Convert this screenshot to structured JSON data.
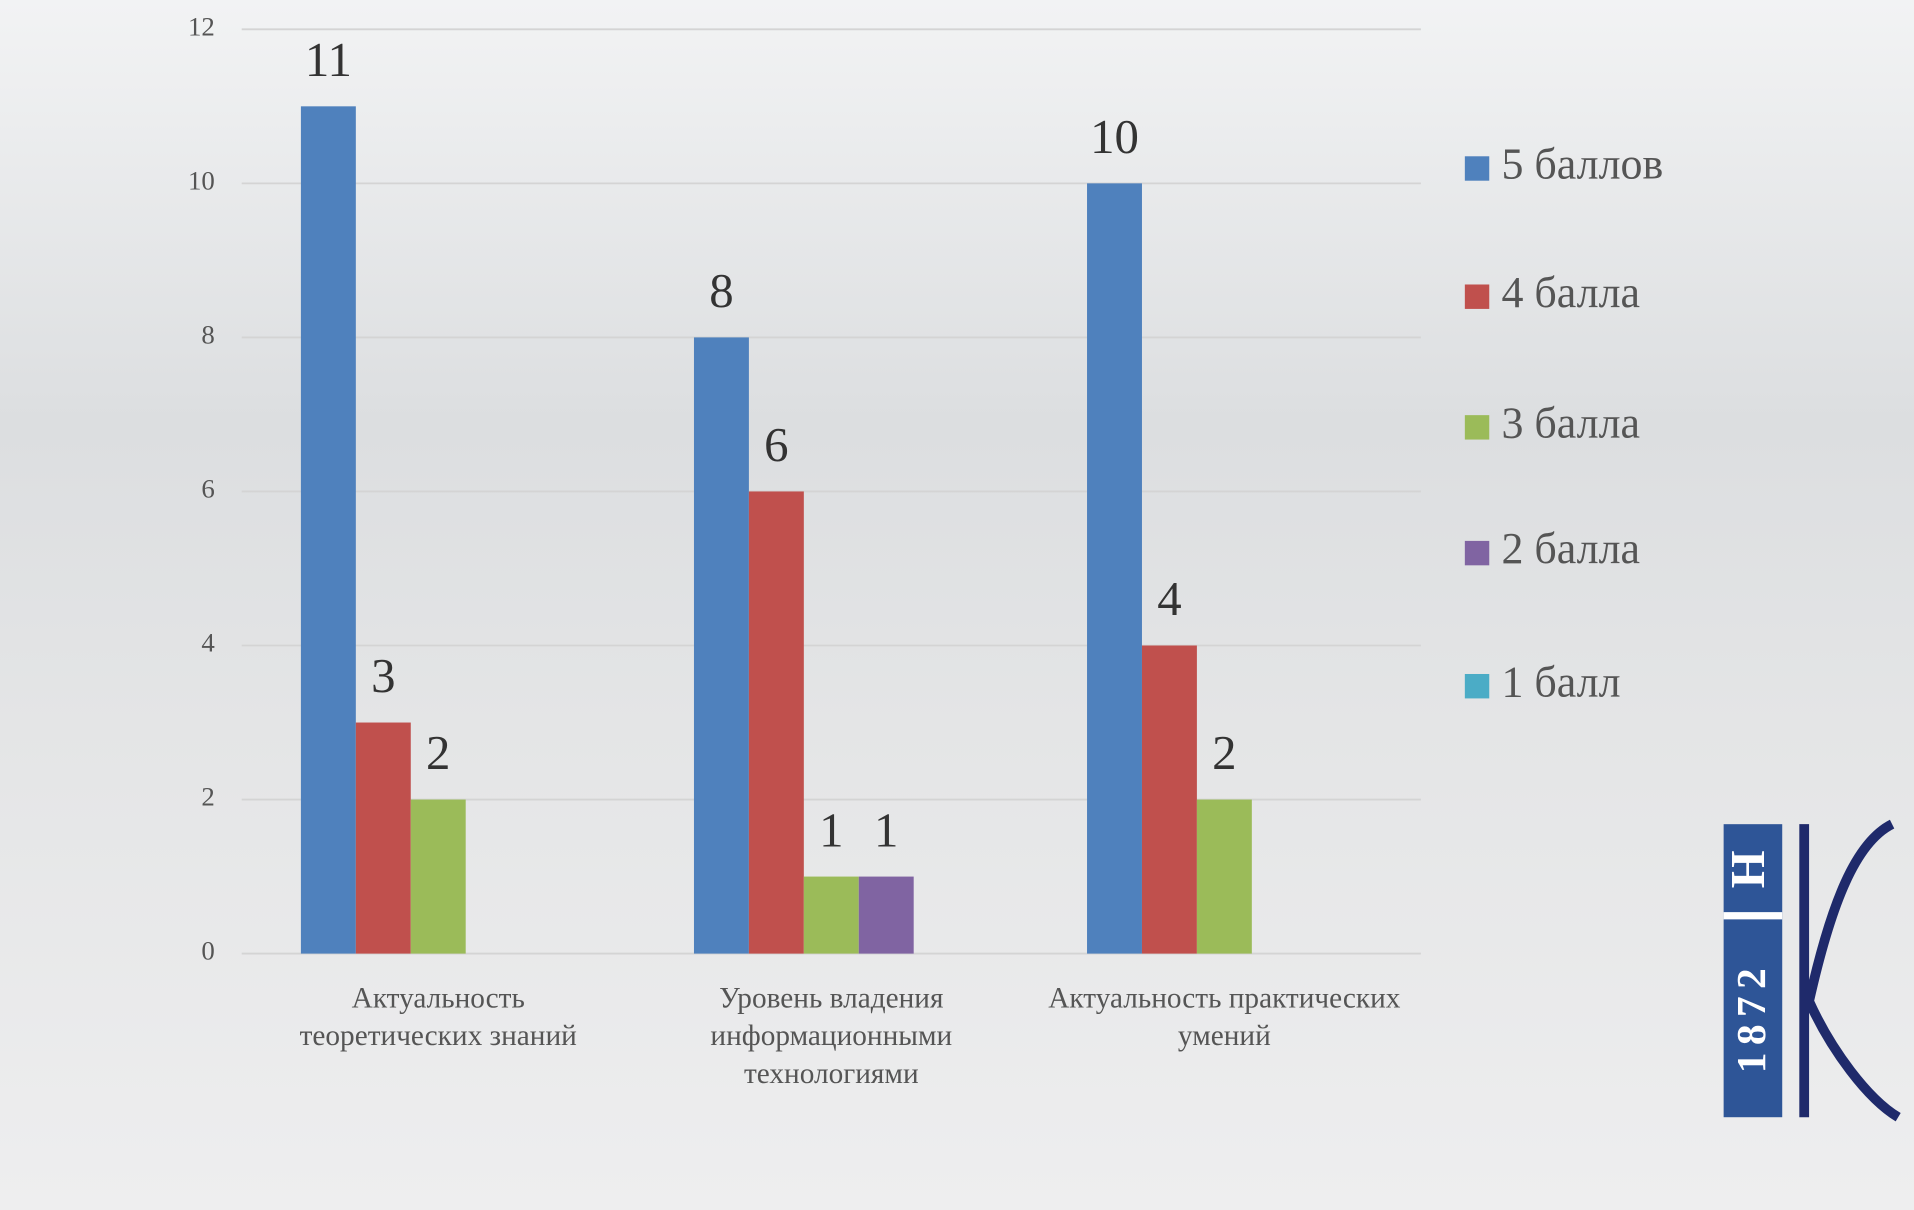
{
  "chart_data": {
    "type": "bar",
    "categories": [
      "Актуальность\nтеоретических знаний",
      "Уровень владения\nинформационными\nтехнологиями",
      "Актуальность практических\nумений"
    ],
    "series": [
      {
        "name": "5 баллов",
        "color": "#4f81bd",
        "values": [
          11,
          8,
          10
        ]
      },
      {
        "name": "4 балла",
        "color": "#c0504d",
        "values": [
          3,
          6,
          4
        ]
      },
      {
        "name": "3 балла",
        "color": "#9bbb59",
        "values": [
          2,
          1,
          2
        ]
      },
      {
        "name": "2 балла",
        "color": "#8064a2",
        "values": [
          null,
          1,
          null
        ]
      },
      {
        "name": "1 балл",
        "color": "#4bacc6",
        "values": [
          null,
          null,
          null
        ]
      }
    ],
    "ylim": [
      0,
      12
    ],
    "yticks": [
      0,
      2,
      4,
      6,
      8,
      10,
      12
    ],
    "grid": true,
    "legend": "right"
  },
  "logo": {
    "letter": "Н",
    "year": "1872"
  }
}
